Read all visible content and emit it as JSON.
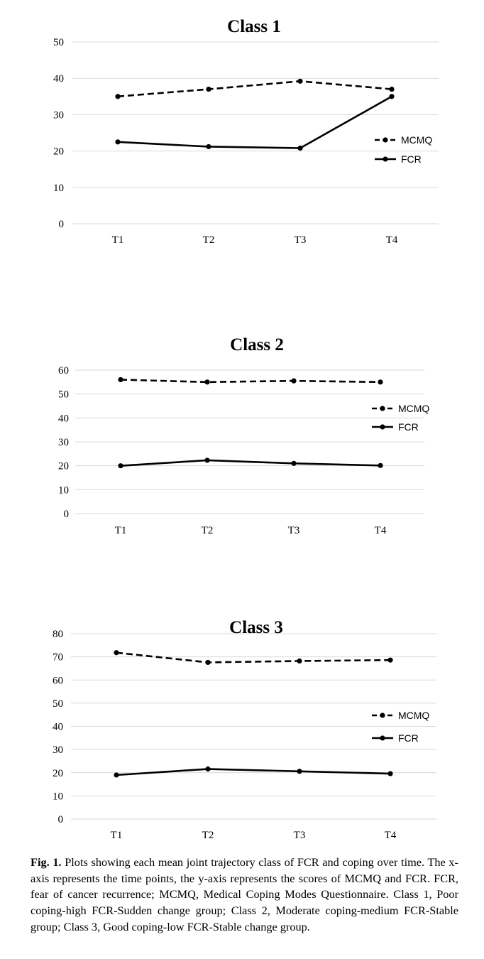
{
  "chart_data": [
    {
      "type": "line",
      "title": "Class 1",
      "categories": [
        "T1",
        "T2",
        "T3",
        "T4"
      ],
      "yticks": [
        "0",
        "10",
        "20",
        "30",
        "40",
        "50"
      ],
      "ylim": [
        0,
        50
      ],
      "grid": true,
      "legend_position": "right",
      "series": [
        {
          "name": "MCMQ",
          "style": "dashed",
          "values": [
            35,
            37,
            39.2,
            37
          ]
        },
        {
          "name": "FCR",
          "style": "solid",
          "values": [
            22.5,
            21.2,
            20.8,
            35
          ]
        }
      ]
    },
    {
      "type": "line",
      "title": "Class 2",
      "categories": [
        "T1",
        "T2",
        "T3",
        "T4"
      ],
      "yticks": [
        "0",
        "10",
        "20",
        "30",
        "40",
        "50",
        "60"
      ],
      "ylim": [
        0,
        60
      ],
      "grid": true,
      "legend_position": "right",
      "series": [
        {
          "name": "MCMQ",
          "style": "dashed",
          "values": [
            56,
            55,
            55.5,
            55
          ]
        },
        {
          "name": "FCR",
          "style": "solid",
          "values": [
            20,
            22.3,
            21,
            20.1
          ]
        }
      ]
    },
    {
      "type": "line",
      "title": "Class 3",
      "categories": [
        "T1",
        "T2",
        "T3",
        "T4"
      ],
      "yticks": [
        "0",
        "10",
        "20",
        "30",
        "40",
        "50",
        "60",
        "70",
        "80"
      ],
      "ylim": [
        0,
        80
      ],
      "grid": true,
      "legend_position": "right",
      "series": [
        {
          "name": "MCMQ",
          "style": "dashed",
          "values": [
            71.8,
            67.6,
            68.2,
            68.6
          ]
        },
        {
          "name": "FCR",
          "style": "solid",
          "values": [
            19,
            21.6,
            20.6,
            19.6
          ]
        }
      ]
    }
  ],
  "caption": {
    "label": "Fig. 1.",
    "text": " Plots showing each mean joint trajectory class of FCR and coping over time. The x-axis represents the time points, the y-axis represents the scores of MCMQ and FCR. FCR, fear of cancer recurrence; MCMQ, Medical Coping Modes Questionnaire. Class 1, Poor coping-high FCR-Sudden change group; Class 2, Moderate coping-medium FCR-Stable group; Class 3, Good coping-low FCR-Stable change group."
  },
  "colors": {
    "line": "#000000",
    "grid": "#d9d9d9",
    "background": "#ffffff"
  }
}
